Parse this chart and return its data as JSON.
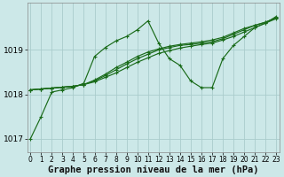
{
  "xlabel": "Graphe pression niveau de la mer (hPa)",
  "background_color": "#cce8e8",
  "grid_color": "#aacccc",
  "line_color": "#1a6b1a",
  "ylim": [
    1016.7,
    1020.05
  ],
  "yticks": [
    1017,
    1018,
    1019
  ],
  "xlim": [
    -0.3,
    23.3
  ],
  "xticks": [
    0,
    1,
    2,
    3,
    4,
    5,
    6,
    7,
    8,
    9,
    10,
    11,
    12,
    13,
    14,
    15,
    16,
    17,
    18,
    19,
    20,
    21,
    22,
    23
  ],
  "series": [
    [
      1017.0,
      1017.5,
      1018.05,
      1018.1,
      1018.15,
      1018.25,
      1018.85,
      1019.05,
      1019.2,
      1019.3,
      1019.45,
      1019.65,
      1019.15,
      1018.8,
      1018.65,
      1018.3,
      1018.15,
      1018.15,
      1018.8,
      1019.1,
      1019.3,
      1019.5,
      1019.6,
      1019.75
    ],
    [
      1018.1,
      1018.12,
      1018.14,
      1018.16,
      1018.18,
      1018.22,
      1018.3,
      1018.42,
      1018.55,
      1018.68,
      1018.8,
      1018.9,
      1019.0,
      1019.05,
      1019.1,
      1019.12,
      1019.15,
      1019.18,
      1019.25,
      1019.35,
      1019.45,
      1019.55,
      1019.62,
      1019.72
    ],
    [
      1018.1,
      1018.12,
      1018.14,
      1018.16,
      1018.18,
      1018.22,
      1018.28,
      1018.38,
      1018.48,
      1018.6,
      1018.72,
      1018.82,
      1018.92,
      1018.98,
      1019.04,
      1019.08,
      1019.12,
      1019.15,
      1019.22,
      1019.3,
      1019.4,
      1019.5,
      1019.6,
      1019.7
    ],
    [
      1018.1,
      1018.12,
      1018.14,
      1018.16,
      1018.18,
      1018.22,
      1018.32,
      1018.45,
      1018.6,
      1018.72,
      1018.85,
      1018.95,
      1019.02,
      1019.08,
      1019.12,
      1019.15,
      1019.18,
      1019.22,
      1019.28,
      1019.38,
      1019.48,
      1019.55,
      1019.62,
      1019.72
    ]
  ],
  "xlabel_fontsize": 7.5,
  "ytick_fontsize": 6.5,
  "xtick_fontsize": 5.5,
  "figwidth": 3.2,
  "figheight": 2.0,
  "dpi": 100
}
